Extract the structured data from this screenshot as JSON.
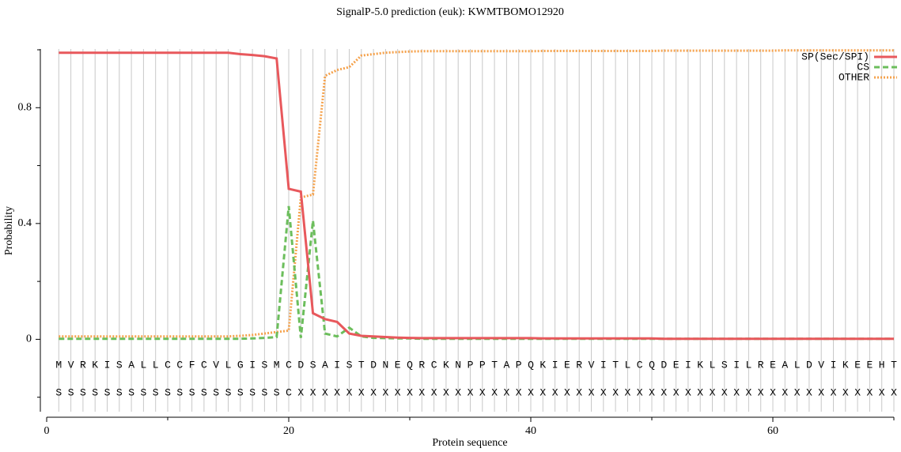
{
  "chart_data": {
    "type": "line",
    "title": "SignalP-5.0 prediction (euk):  KWMTBOMO12920",
    "x_label": "Protein sequence",
    "y_label": "Probability",
    "x": [
      1,
      2,
      3,
      4,
      5,
      6,
      7,
      8,
      9,
      10,
      11,
      12,
      13,
      14,
      15,
      16,
      17,
      18,
      19,
      20,
      21,
      22,
      23,
      24,
      25,
      26,
      27,
      28,
      29,
      30,
      31,
      32,
      33,
      34,
      35,
      36,
      37,
      38,
      39,
      40,
      41,
      42,
      43,
      44,
      45,
      46,
      47,
      48,
      49,
      50,
      51,
      52,
      53,
      54,
      55,
      56,
      57,
      58,
      59,
      60,
      61,
      62,
      63,
      64,
      65,
      66,
      67,
      68,
      69,
      70
    ],
    "sequence": [
      "M",
      "V",
      "R",
      "K",
      "I",
      "S",
      "A",
      "L",
      "L",
      "C",
      "C",
      "F",
      "C",
      "V",
      "L",
      "G",
      "I",
      "S",
      "M",
      "C",
      "D",
      "S",
      "A",
      "I",
      "S",
      "T",
      "D",
      "N",
      "E",
      "Q",
      "R",
      "C",
      "K",
      "N",
      "P",
      "P",
      "T",
      "A",
      "P",
      "Q",
      "K",
      "I",
      "E",
      "R",
      "V",
      "I",
      "T",
      "L",
      "C",
      "Q",
      "D",
      "E",
      "I",
      "K",
      "L",
      "S",
      "I",
      "L",
      "R",
      "E",
      "A",
      "L",
      "D",
      "V",
      "I",
      "K",
      "E",
      "E",
      "H",
      "T"
    ],
    "labels": [
      "S",
      "S",
      "S",
      "S",
      "S",
      "S",
      "S",
      "S",
      "S",
      "S",
      "S",
      "S",
      "S",
      "S",
      "S",
      "S",
      "S",
      "S",
      "S",
      "C",
      "X",
      "X",
      "X",
      "X",
      "X",
      "X",
      "X",
      "X",
      "X",
      "X",
      "X",
      "X",
      "X",
      "X",
      "X",
      "X",
      "X",
      "X",
      "X",
      "X",
      "X",
      "X",
      "X",
      "X",
      "X",
      "X",
      "X",
      "X",
      "X",
      "X",
      "X",
      "X",
      "X",
      "X",
      "X",
      "X",
      "X",
      "X",
      "X",
      "X",
      "X",
      "X",
      "X",
      "X",
      "X",
      "X",
      "X",
      "X",
      "X",
      "X"
    ],
    "series": [
      {
        "name": "SP(Sec/SPI)",
        "color": "#e8585c",
        "dash": "solid",
        "values": [
          0.99,
          0.99,
          0.99,
          0.99,
          0.99,
          0.99,
          0.99,
          0.99,
          0.99,
          0.99,
          0.99,
          0.99,
          0.99,
          0.99,
          0.99,
          0.985,
          0.982,
          0.978,
          0.97,
          0.52,
          0.51,
          0.09,
          0.07,
          0.06,
          0.02,
          0.012,
          0.01,
          0.008,
          0.006,
          0.005,
          0.004,
          0.004,
          0.004,
          0.004,
          0.004,
          0.004,
          0.004,
          0.004,
          0.004,
          0.004,
          0.003,
          0.003,
          0.003,
          0.003,
          0.003,
          0.003,
          0.003,
          0.003,
          0.003,
          0.003,
          0.002,
          0.002,
          0.002,
          0.002,
          0.002,
          0.002,
          0.002,
          0.002,
          0.002,
          0.002,
          0.002,
          0.002,
          0.002,
          0.002,
          0.002,
          0.002,
          0.002,
          0.002,
          0.002,
          0.002
        ]
      },
      {
        "name": "CS",
        "color": "#6cbe5c",
        "dash": "dashed",
        "values": [
          0.002,
          0.002,
          0.002,
          0.002,
          0.002,
          0.002,
          0.002,
          0.002,
          0.002,
          0.002,
          0.002,
          0.002,
          0.002,
          0.002,
          0.002,
          0.002,
          0.003,
          0.005,
          0.008,
          0.46,
          0.005,
          0.41,
          0.02,
          0.01,
          0.04,
          0.01,
          0.005,
          0.004,
          0.003,
          0.003,
          0.002,
          0.002,
          0.002,
          0.002,
          0.002,
          0.002,
          0.002,
          0.002,
          0.002,
          0.002,
          0.002,
          0.002,
          0.002,
          0.002,
          0.002,
          0.002,
          0.002,
          0.002,
          0.002,
          0.002,
          0.002,
          0.002,
          0.002,
          0.002,
          0.002,
          0.002,
          0.002,
          0.002,
          0.002,
          0.002,
          0.002,
          0.002,
          0.002,
          0.002,
          0.002,
          0.002,
          0.002,
          0.002,
          0.002,
          0.002
        ]
      },
      {
        "name": "OTHER",
        "color": "#f5a24c",
        "dash": "dotted",
        "values": [
          0.01,
          0.01,
          0.01,
          0.01,
          0.01,
          0.01,
          0.01,
          0.01,
          0.01,
          0.01,
          0.01,
          0.01,
          0.01,
          0.01,
          0.01,
          0.012,
          0.015,
          0.02,
          0.025,
          0.03,
          0.49,
          0.5,
          0.91,
          0.93,
          0.94,
          0.98,
          0.985,
          0.99,
          0.992,
          0.994,
          0.995,
          0.995,
          0.995,
          0.995,
          0.995,
          0.995,
          0.995,
          0.995,
          0.995,
          0.995,
          0.996,
          0.996,
          0.996,
          0.996,
          0.996,
          0.996,
          0.996,
          0.996,
          0.996,
          0.996,
          0.997,
          0.997,
          0.997,
          0.997,
          0.997,
          0.997,
          0.997,
          0.997,
          0.997,
          0.997,
          0.998,
          0.998,
          0.998,
          0.998,
          0.998,
          0.998,
          0.998,
          0.998,
          0.998,
          0.998
        ]
      }
    ],
    "xlim": [
      0,
      70
    ],
    "xticks": [
      0,
      20,
      40,
      60
    ],
    "xminorticks": [
      10,
      30,
      50,
      70
    ],
    "ylim": [
      -0.25,
      1
    ],
    "yticks": [
      0,
      0.4,
      0.8
    ],
    "yminorticks": [
      -0.2,
      0.2,
      0.6,
      1
    ],
    "grid": true,
    "legend": "upper right"
  }
}
